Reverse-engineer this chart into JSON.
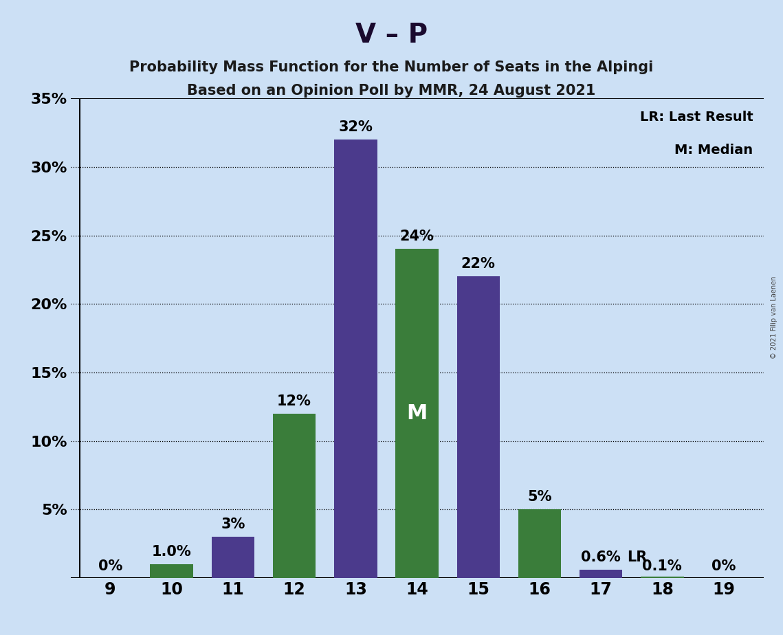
{
  "title_main": "V – P",
  "subtitle1": "Probability Mass Function for the Number of Seats in the Alpingi",
  "subtitle2": "Based on an Opinion Poll by MMR, 24 August 2021",
  "copyright": "© 2021 Filip van Laenen",
  "seats": [
    9,
    10,
    11,
    12,
    13,
    14,
    15,
    16,
    17,
    18,
    19
  ],
  "bar_values": [
    0.0,
    1.0,
    3.0,
    12.0,
    32.0,
    24.0,
    22.0,
    5.0,
    0.6,
    0.1,
    0.0
  ],
  "bar_colors": [
    "#3a7d3a",
    "#3a7d3a",
    "#4b3a8c",
    "#3a7d3a",
    "#4b3a8c",
    "#3a7d3a",
    "#4b3a8c",
    "#3a7d3a",
    "#4b3a8c",
    "#3a7d3a",
    "#3a7d3a"
  ],
  "bar_labels": [
    "0%",
    "1.0%",
    "3%",
    "12%",
    "32%",
    "24%",
    "22%",
    "5%",
    "0.6%",
    "0.1%",
    "0%"
  ],
  "label_colors": [
    "black",
    "black",
    "black",
    "black",
    "black",
    "black",
    "black",
    "black",
    "black",
    "black",
    "black"
  ],
  "green_color": "#3a7d3a",
  "purple_color": "#4b3a8c",
  "background_color": "#cce0f5",
  "median_bar_idx": 5,
  "lr_bar_idx": 8,
  "legend_lr": "LR: Last Result",
  "legend_m": "M: Median",
  "ylim": [
    0,
    35
  ],
  "bar_width": 0.7,
  "label_fontsize": 15,
  "title_fontsize": 28,
  "subtitle_fontsize": 15
}
